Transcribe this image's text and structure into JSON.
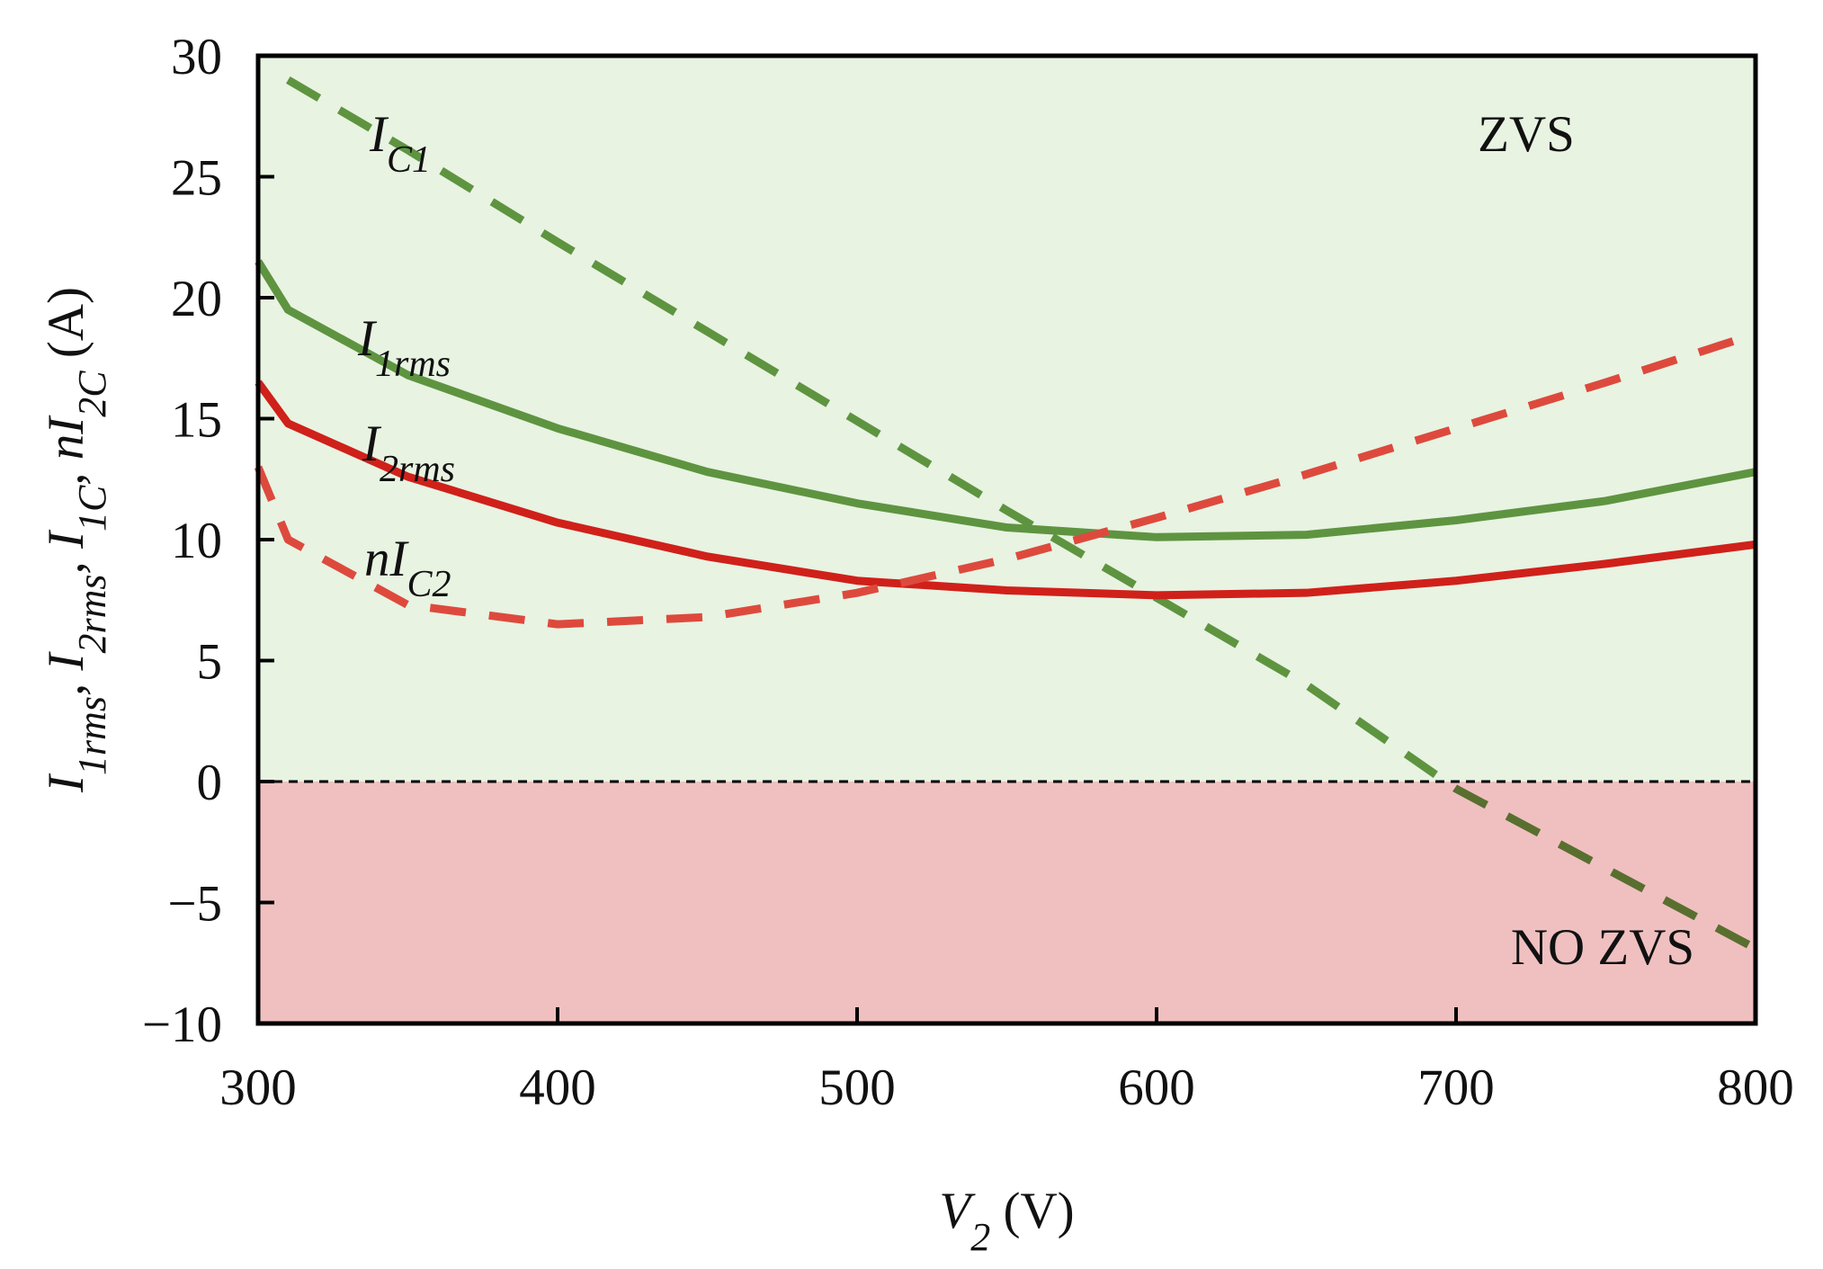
{
  "chart_data": {
    "type": "line",
    "x_label": [
      {
        "text": "V",
        "italic": true
      },
      {
        "text": "2",
        "italic": true,
        "sub": true
      },
      {
        "text": " (V)"
      }
    ],
    "y_label": [
      {
        "text": "I",
        "italic": true
      },
      {
        "text": "1rms",
        "italic": true,
        "sub": true
      },
      {
        "text": ", I",
        "italic": true
      },
      {
        "text": "2rms",
        "italic": true,
        "sub": true
      },
      {
        "text": ", I",
        "italic": true
      },
      {
        "text": "1C",
        "italic": true,
        "sub": true
      },
      {
        "text": ", nI",
        "italic": true
      },
      {
        "text": "2C",
        "italic": true,
        "sub": true
      },
      {
        "text": " (A)"
      }
    ],
    "x": [
      300,
      310,
      350,
      400,
      450,
      500,
      550,
      600,
      650,
      700,
      750,
      800
    ],
    "series": [
      {
        "name": "I",
        "subscript": "C1",
        "color": "#5e9440",
        "dashed": true,
        "values": [
          null,
          29.0,
          26.1,
          22.3,
          18.6,
          14.9,
          11.2,
          7.6,
          4.0,
          -0.3,
          -3.6,
          -6.9
        ]
      },
      {
        "name": "I",
        "subscript": "1rms",
        "color": "#5e9440",
        "dashed": false,
        "values": [
          21.5,
          19.5,
          16.8,
          14.6,
          12.8,
          11.5,
          10.5,
          10.1,
          10.2,
          10.8,
          11.6,
          12.8
        ]
      },
      {
        "name": "I",
        "subscript": "2rms",
        "color": "#d0201a",
        "dashed": false,
        "values": [
          16.5,
          14.8,
          12.6,
          10.7,
          9.3,
          8.3,
          7.9,
          7.7,
          7.8,
          8.3,
          9.0,
          9.8
        ]
      },
      {
        "name": "nI",
        "subscript": "C2",
        "color": "#dd4a3d",
        "dashed": true,
        "values": [
          13.0,
          10.0,
          7.3,
          6.5,
          6.8,
          7.8,
          9.2,
          10.9,
          12.7,
          14.6,
          16.5,
          18.5
        ]
      }
    ],
    "regions": [
      {
        "label": "ZVS",
        "from": 0,
        "to": 30,
        "color": "#e8f3e2"
      },
      {
        "label": "NO ZVS",
        "from": -10,
        "to": 0,
        "color": "#f0c0c0"
      }
    ],
    "xlim": [
      300,
      800
    ],
    "xticks": [
      300,
      400,
      500,
      600,
      700,
      800
    ],
    "ylim": [
      -10,
      30
    ],
    "yticks": [
      {
        "value": -10,
        "label": "−10"
      },
      {
        "value": -5,
        "label": "−5"
      },
      0,
      5,
      10,
      15,
      20,
      25,
      30
    ]
  }
}
